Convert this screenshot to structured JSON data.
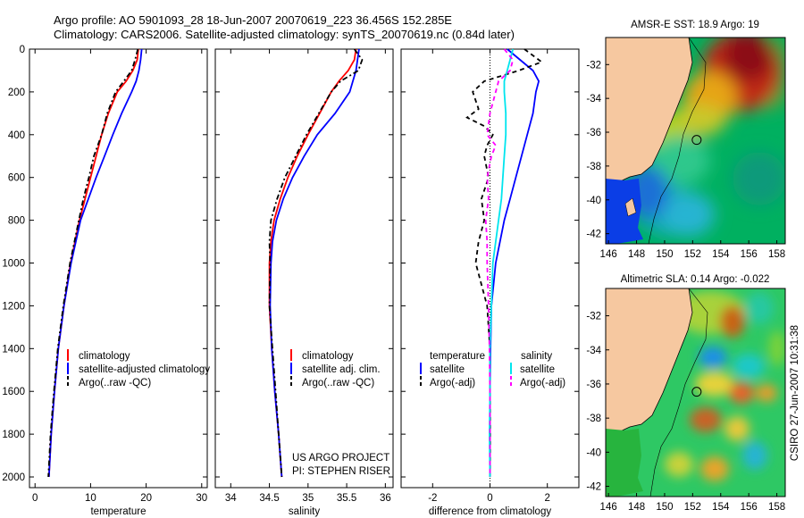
{
  "header": {
    "line1": "Argo profile: AO 5901093_28 18-Jun-2007 20070619_223 36.456S 152.285E",
    "line2": "Climatology: CARS2006. Satellite-adjusted climatology: synTS_20070619.nc (0.84d later)"
  },
  "side_stamp": "CSIRO 27-Jun-2007 10:31:38",
  "project": {
    "line1": "US ARGO PROJECT",
    "line2": "PI: STEPHEN RISER"
  },
  "colors": {
    "climatology": "#ff0000",
    "satellite": "#0000ff",
    "argo": "#000000",
    "cyan": "#00e5ee",
    "magenta": "#ff00ff",
    "land": "#f6c8a0"
  },
  "chart_data": [
    {
      "id": "temperature",
      "type": "line",
      "xlabel": "temperature",
      "ylabel": "",
      "xlim": [
        -1,
        31
      ],
      "ylim": [
        2050,
        0
      ],
      "xticks": [
        0,
        10,
        20,
        30
      ],
      "yticks": [
        0,
        200,
        400,
        600,
        800,
        1000,
        1200,
        1400,
        1600,
        1800,
        2000
      ],
      "legend": [
        "climatology",
        "satellite-adjusted climatology",
        "Argo(..raw -QC)"
      ],
      "series": [
        {
          "name": "climatology",
          "depth": [
            0,
            50,
            100,
            150,
            200,
            300,
            400,
            500,
            600,
            700,
            800,
            1000,
            1200,
            1400,
            1600,
            1800,
            2000
          ],
          "values": [
            18.6,
            18.4,
            17.6,
            16.4,
            14.8,
            13.2,
            12.0,
            11.0,
            10.0,
            9.0,
            8.0,
            6.4,
            5.2,
            4.2,
            3.5,
            2.9,
            2.5
          ]
        },
        {
          "name": "satellite",
          "depth": [
            0,
            50,
            100,
            150,
            200,
            300,
            400,
            500,
            600,
            700,
            800,
            1000,
            1200,
            1400,
            1600,
            1800,
            2000
          ],
          "values": [
            19.2,
            19.0,
            18.7,
            18.2,
            17.4,
            15.6,
            14.0,
            12.5,
            11.0,
            9.6,
            8.2,
            6.5,
            5.2,
            4.2,
            3.5,
            2.9,
            2.5
          ]
        },
        {
          "name": "Argo",
          "depth": [
            0,
            50,
            100,
            150,
            200,
            300,
            400,
            500,
            600,
            700,
            800,
            1000,
            1200,
            1400,
            1600,
            1800,
            2000
          ],
          "values": [
            18.5,
            18.0,
            17.4,
            16.0,
            14.5,
            13.0,
            12.0,
            10.6,
            9.7,
            8.7,
            7.9,
            6.3,
            5.1,
            4.1,
            3.4,
            2.8,
            2.4
          ]
        }
      ]
    },
    {
      "id": "salinity",
      "type": "line",
      "xlabel": "salinity",
      "ylabel": "",
      "xlim": [
        33.8,
        36.1
      ],
      "ylim": [
        2050,
        0
      ],
      "xticks": [
        34,
        34.5,
        35,
        35.5,
        36
      ],
      "yticks": [
        0,
        200,
        400,
        600,
        800,
        1000,
        1200,
        1400,
        1600,
        1800,
        2000
      ],
      "legend": [
        "climatology",
        "satellite adj. clim.",
        "Argo(..raw -QC)"
      ],
      "series": [
        {
          "name": "climatology",
          "depth": [
            0,
            50,
            100,
            150,
            200,
            300,
            400,
            500,
            600,
            700,
            800,
            900,
            1000,
            1200,
            1400,
            1600,
            1800,
            2000
          ],
          "values": [
            35.62,
            35.6,
            35.52,
            35.4,
            35.3,
            35.15,
            35.0,
            34.86,
            34.74,
            34.64,
            34.56,
            34.52,
            34.5,
            34.5,
            34.53,
            34.57,
            34.62,
            34.66
          ]
        },
        {
          "name": "satellite",
          "depth": [
            0,
            50,
            100,
            150,
            200,
            300,
            400,
            500,
            600,
            700,
            800,
            900,
            1000,
            1200,
            1400,
            1600,
            1800,
            2000
          ],
          "values": [
            35.66,
            35.64,
            35.62,
            35.58,
            35.54,
            35.35,
            35.12,
            34.95,
            34.8,
            34.68,
            34.59,
            34.54,
            34.52,
            34.51,
            34.53,
            34.57,
            34.62,
            34.66
          ]
        },
        {
          "name": "Argo",
          "depth": [
            0,
            50,
            100,
            150,
            200,
            300,
            400,
            500,
            600,
            700,
            800,
            900,
            1000,
            1200,
            1400,
            1600,
            1800,
            2000
          ],
          "values": [
            35.6,
            35.7,
            35.65,
            35.42,
            35.3,
            35.14,
            34.98,
            34.84,
            34.7,
            34.6,
            34.52,
            34.5,
            34.51,
            34.5,
            34.54,
            34.58,
            34.62,
            34.66
          ]
        }
      ]
    },
    {
      "id": "difference",
      "type": "line",
      "xlabel": "difference from climatology",
      "ylabel": "",
      "xlim": [
        -3.1,
        3.1
      ],
      "ylim": [
        2050,
        0
      ],
      "xticks": [
        -2,
        0,
        2
      ],
      "yticks": [
        0,
        200,
        400,
        600,
        800,
        1000,
        1200,
        1400,
        1600,
        1800,
        2000
      ],
      "legend_left_title": "temperature",
      "legend_right_title": "salinity",
      "legend": [
        "satellite",
        "Argo(-adj)",
        "satellite",
        "Argo(-adj)"
      ],
      "series": [
        {
          "name": "temperature satellite",
          "depth": [
            0,
            100,
            150,
            200,
            300,
            400,
            500,
            600,
            700,
            800,
            900,
            1000,
            1200,
            1400,
            1600,
            1800,
            2000
          ],
          "values": [
            0.6,
            1.5,
            1.7,
            1.6,
            1.5,
            1.3,
            1.1,
            0.9,
            0.7,
            0.5,
            0.35,
            0.2,
            0.05,
            0.02,
            0.0,
            0.0,
            0.0
          ]
        },
        {
          "name": "temperature Argo",
          "depth": [
            0,
            60,
            100,
            150,
            200,
            280,
            320,
            360,
            400,
            450,
            500,
            600,
            700,
            800,
            900,
            1000,
            1100,
            1200,
            1300,
            1400,
            1600,
            1800,
            2000
          ],
          "values": [
            1.2,
            1.8,
            1.0,
            -0.2,
            -0.6,
            -0.4,
            -0.8,
            -0.2,
            0.1,
            -0.1,
            -0.2,
            -0.05,
            -0.3,
            -0.2,
            -0.4,
            -0.5,
            -0.3,
            -0.1,
            -0.05,
            0.0,
            0.0,
            0.0,
            0.0
          ]
        },
        {
          "name": "salinity satellite",
          "depth": [
            0,
            100,
            150,
            200,
            300,
            400,
            500,
            600,
            700,
            800,
            900,
            1000,
            1200,
            1400,
            1600,
            1800,
            2000
          ],
          "values": [
            0.8,
            0.6,
            0.5,
            0.5,
            0.55,
            0.55,
            0.5,
            0.45,
            0.4,
            0.3,
            0.2,
            0.1,
            0.05,
            0.0,
            0.0,
            -0.02,
            0.0
          ]
        },
        {
          "name": "salinity Argo",
          "depth": [
            0,
            50,
            100,
            150,
            200,
            300,
            400,
            450,
            500,
            600,
            700,
            800,
            900,
            1000,
            1200,
            1400,
            1600,
            1800,
            2000
          ],
          "values": [
            0.5,
            0.8,
            0.7,
            0.3,
            0.2,
            0.0,
            -0.1,
            0.2,
            0.05,
            -0.1,
            -0.05,
            -0.15,
            -0.1,
            -0.1,
            -0.05,
            -0.02,
            0.0,
            0.0,
            0.0
          ]
        }
      ]
    },
    {
      "id": "sst_map",
      "type": "heatmap",
      "title": "AMSR-E SST: 18.9 Argo: 19",
      "xticks": [
        146,
        148,
        150,
        152,
        154,
        156,
        158
      ],
      "yticks": [
        -32,
        -34,
        -36,
        -38,
        -40,
        -42
      ],
      "xlim": [
        145.8,
        158.6
      ],
      "ylim": [
        -42.6,
        -30.4
      ],
      "marker": [
        152.285,
        -36.456
      ]
    },
    {
      "id": "sla_map",
      "type": "heatmap",
      "title": "Altimetric SLA: 0.14 Argo: -0.022",
      "xticks": [
        146,
        148,
        150,
        152,
        154,
        156,
        158
      ],
      "yticks": [
        -32,
        -34,
        -36,
        -38,
        -40,
        -42
      ],
      "xlim": [
        145.8,
        158.6
      ],
      "ylim": [
        -42.6,
        -30.4
      ],
      "marker": [
        152.285,
        -36.456
      ]
    }
  ]
}
